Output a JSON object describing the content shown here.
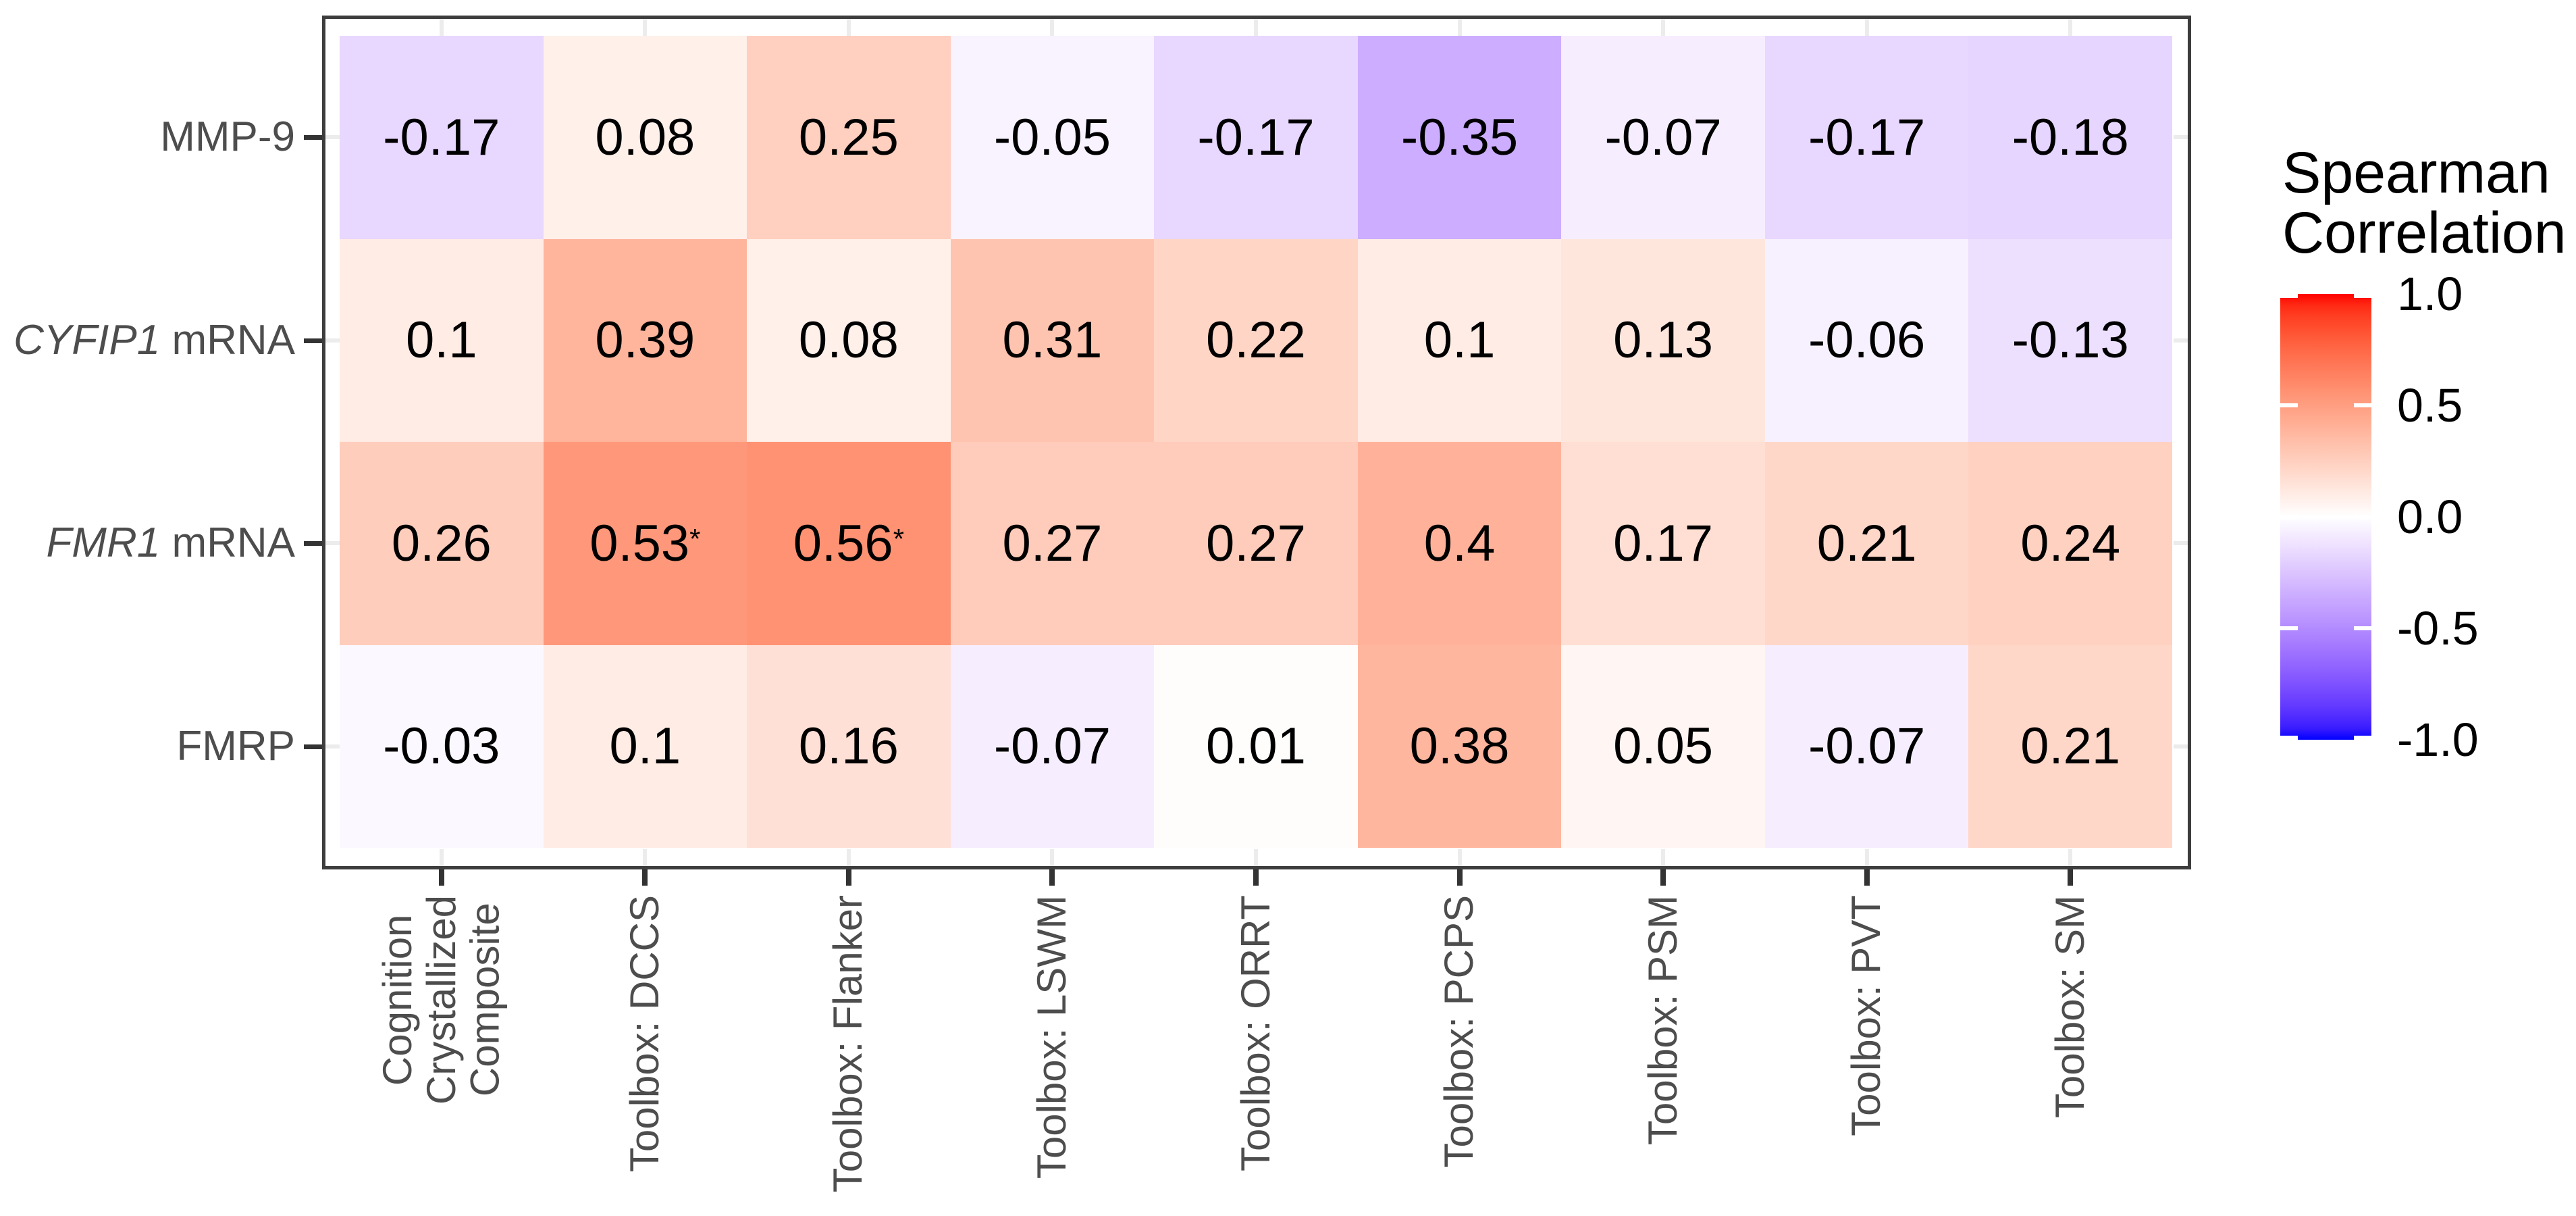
{
  "figure": {
    "background": "#ffffff"
  },
  "chart_data": {
    "type": "heatmap",
    "title": "",
    "x_axis": {
      "labels": [
        [
          "Cognition",
          "Crystallized",
          "Composite"
        ],
        [
          "Toolbox: DCCS"
        ],
        [
          "Toolbox: Flanker"
        ],
        [
          "Toolbox: LSWM"
        ],
        [
          "Toolbox: ORRT"
        ],
        [
          "Toolbox: PCPS"
        ],
        [
          "Toolbox: PSM"
        ],
        [
          "Toolbox: PVT"
        ],
        [
          "Toolbox: SM"
        ]
      ]
    },
    "y_axis": {
      "labels": [
        {
          "text": "MMP-9",
          "italic_prefix": ""
        },
        {
          "text": "CYFIP1 mRNA",
          "italic_prefix": "CYFIP1"
        },
        {
          "text": "FMR1 mRNA",
          "italic_prefix": "FMR1"
        },
        {
          "text": "FMRP",
          "italic_prefix": ""
        }
      ]
    },
    "cells": {
      "values": [
        [
          -0.17,
          0.08,
          0.25,
          -0.05,
          -0.17,
          -0.35,
          -0.07,
          -0.17,
          -0.18
        ],
        [
          0.1,
          0.39,
          0.08,
          0.31,
          0.22,
          0.1,
          0.13,
          -0.06,
          -0.13
        ],
        [
          0.26,
          0.53,
          0.56,
          0.27,
          0.27,
          0.4,
          0.17,
          0.21,
          0.24
        ],
        [
          -0.03,
          0.1,
          0.16,
          -0.07,
          0.01,
          0.38,
          0.05,
          -0.07,
          0.21
        ]
      ],
      "labels": [
        [
          "-0.17",
          "0.08",
          "0.25",
          "-0.05",
          "-0.17",
          "-0.35",
          "-0.07",
          "-0.17",
          "-0.18"
        ],
        [
          "0.1",
          "0.39",
          "0.08",
          "0.31",
          "0.22",
          "0.1",
          "0.13",
          "-0.06",
          "-0.13"
        ],
        [
          "0.26",
          "0.53",
          "0.56",
          "0.27",
          "0.27",
          "0.4",
          "0.17",
          "0.21",
          "0.24"
        ],
        [
          "-0.03",
          "0.1",
          "0.16",
          "-0.07",
          "0.01",
          "0.38",
          "0.05",
          "-0.07",
          "0.21"
        ]
      ],
      "significant": [
        [
          false,
          false,
          false,
          false,
          false,
          false,
          false,
          false,
          false
        ],
        [
          false,
          false,
          false,
          false,
          false,
          false,
          false,
          false,
          false
        ],
        [
          false,
          true,
          true,
          false,
          false,
          false,
          false,
          false,
          false
        ],
        [
          false,
          false,
          false,
          false,
          false,
          false,
          false,
          false,
          false
        ]
      ]
    },
    "significance_marker": "*",
    "color_scale": {
      "low": "#0000ff",
      "mid": "#ffffff",
      "high": "#ff0000",
      "domain": [
        -1,
        0,
        1
      ],
      "interpolation": "lab"
    },
    "legend": {
      "title": "Spearman\nCorrelation",
      "position": "right",
      "tick_labels": [
        "1.0",
        "0.5",
        "0.0",
        "-0.5",
        "-1.0"
      ],
      "tick_values": [
        1.0,
        0.5,
        0.0,
        -0.5,
        -1.0
      ]
    },
    "colors": {
      "frame": "#3d3d3d",
      "axis_text": "#4d4d4d",
      "tick_dark": "#333333",
      "tick_light": "#ececec",
      "cell_text": "#000000",
      "legend_text": "#000000"
    },
    "layout_hints": {
      "grid": "off",
      "rows": 4,
      "cols": 9
    }
  }
}
